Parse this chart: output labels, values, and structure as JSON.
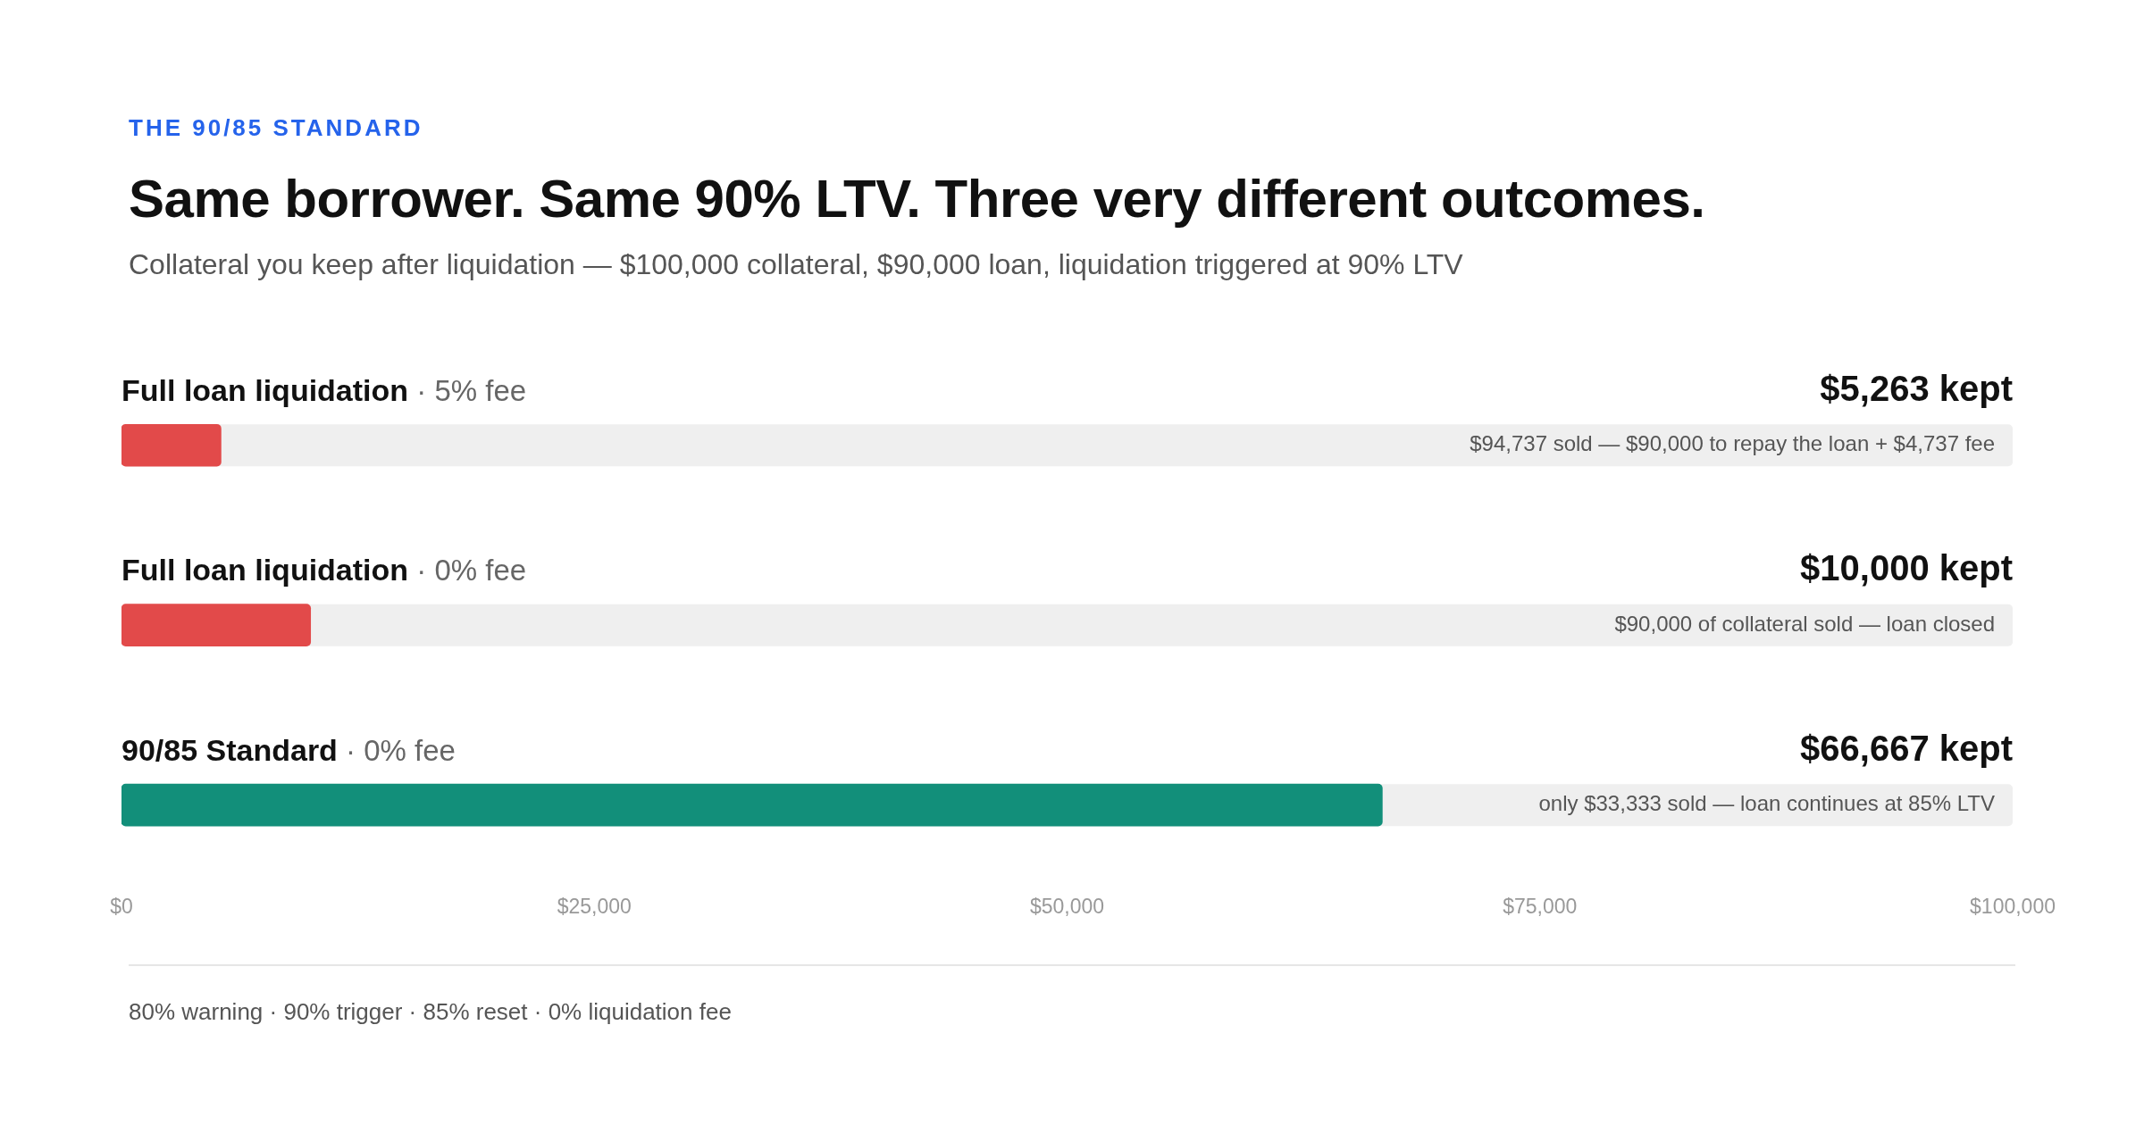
{
  "chart_data": {
    "type": "bar",
    "orientation": "horizontal",
    "title": "Same borrower. Same 90% LTV. Three very different outcomes.",
    "subtitle": "Collateral you keep after liquidation — $100,000 collateral, $90,000 loan, liquidation triggered at 90% LTV",
    "categories": [
      "Full loan liquidation · 5% fee",
      "Full loan liquidation · 0% fee",
      "90/85 Standard · 0% fee"
    ],
    "values": [
      5263,
      10000,
      66667
    ],
    "colors": [
      "#e24a4a",
      "#e24a4a",
      "#128f7a"
    ],
    "value_labels": [
      "$5,263 kept",
      "$10,000 kept",
      "$66,667 kept"
    ],
    "xlim": [
      0,
      100000
    ],
    "xticks": [
      {
        "value": 0,
        "label": "$0"
      },
      {
        "value": 25000,
        "label": "$25,000"
      },
      {
        "value": 50000,
        "label": "$50,000"
      },
      {
        "value": 75000,
        "label": "$75,000"
      },
      {
        "value": 100000,
        "label": "$100,000"
      }
    ],
    "grid": false,
    "legend": false,
    "annotations": [
      "THE 90/85 STANDARD",
      "$94,737 sold — $90,000 to repay the loan + $4,737 fee",
      "$90,000 of collateral sold — loan closed",
      "only $33,333 sold — loan continues at 85% LTV",
      "80% warning · 90% trigger · 85% reset · 0% liquidation fee"
    ]
  }
}
